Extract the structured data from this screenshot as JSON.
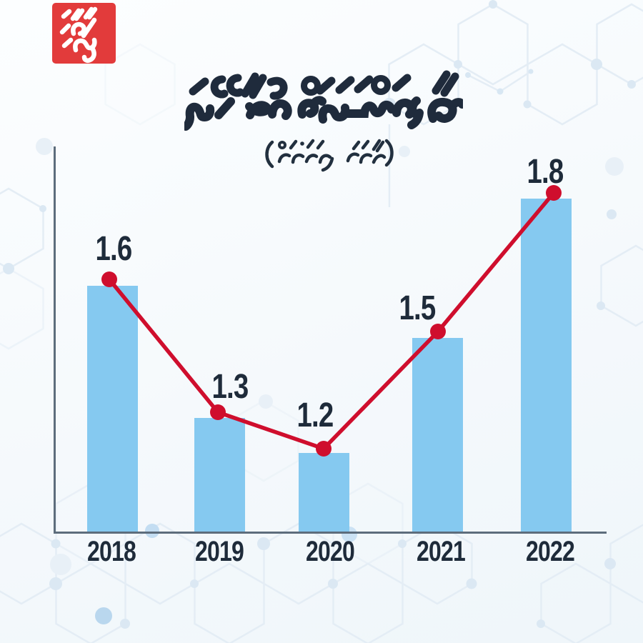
{
  "page": {
    "background_tint": "#f5f9fc"
  },
  "brand": {
    "logo_text": "މިހާރު",
    "logo_bg_color": "#e23b3b",
    "logo_text_color": "#ffffff"
  },
  "header": {
    "title": "އާސަންދައަށް ކުރި ހޭދަ",
    "subtitle": "(ރުފިޔާ ބިލިއަނުން)"
  },
  "chart_data": {
    "type": "bar",
    "overlay": "line",
    "title": "އާސަންދައަށް ކުރި ހޭދަ",
    "subtitle": "(ރުފިޔާ ބިލިއަނުން)",
    "categories": [
      "2018",
      "2019",
      "2020",
      "2021",
      "2022"
    ],
    "series": [
      {
        "name": "bars",
        "values": [
          1.6,
          1.3,
          1.2,
          1.5,
          1.8
        ],
        "color": "#85c9f0"
      },
      {
        "name": "trend-line",
        "values": [
          1.6,
          1.3,
          1.2,
          1.5,
          1.8
        ],
        "color": "#cf0e2d"
      }
    ],
    "value_labels": [
      "1.6",
      "1.3",
      "1.2",
      "1.5",
      "1.8"
    ],
    "xlabel": "",
    "ylabel": "",
    "ylim": [
      1.0,
      2.0
    ],
    "grid": false,
    "legend": false,
    "label_color": "#1e2b3a",
    "axis_color": "#5d6d7c"
  }
}
